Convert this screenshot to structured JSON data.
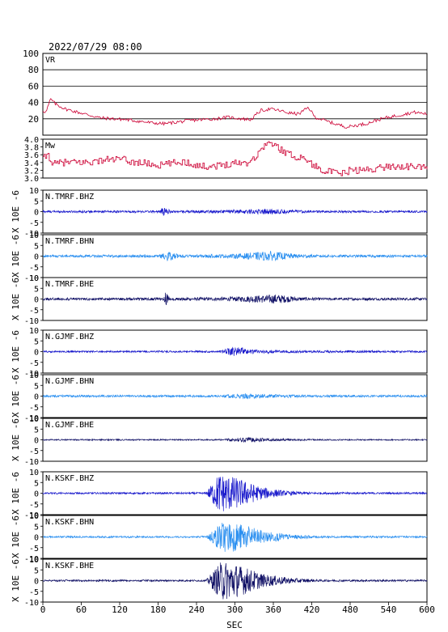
{
  "chart_data": {
    "type": "line",
    "title": "2022/07/29 08:00",
    "xlabel": "SEC",
    "xlim": [
      0,
      600
    ],
    "xticks": [
      0,
      60,
      120,
      180,
      240,
      300,
      360,
      420,
      480,
      540,
      600
    ],
    "vr": {
      "label": "VR",
      "ylim": [
        0,
        100
      ],
      "yticks": [
        20,
        40,
        60,
        80,
        100
      ],
      "color": "#cc0033",
      "points": [
        [
          0,
          30
        ],
        [
          5,
          28
        ],
        [
          12,
          44
        ],
        [
          20,
          38
        ],
        [
          35,
          32
        ],
        [
          50,
          29
        ],
        [
          70,
          25
        ],
        [
          90,
          21
        ],
        [
          110,
          20
        ],
        [
          130,
          19
        ],
        [
          150,
          17
        ],
        [
          170,
          15
        ],
        [
          190,
          14
        ],
        [
          210,
          16
        ],
        [
          230,
          18
        ],
        [
          250,
          19
        ],
        [
          270,
          20
        ],
        [
          290,
          22
        ],
        [
          310,
          20
        ],
        [
          325,
          19
        ],
        [
          340,
          30
        ],
        [
          355,
          32
        ],
        [
          370,
          30
        ],
        [
          385,
          27
        ],
        [
          400,
          26
        ],
        [
          415,
          34
        ],
        [
          425,
          22
        ],
        [
          440,
          18
        ],
        [
          460,
          13
        ],
        [
          475,
          10
        ],
        [
          490,
          12
        ],
        [
          505,
          14
        ],
        [
          520,
          18
        ],
        [
          540,
          22
        ],
        [
          560,
          25
        ],
        [
          580,
          28
        ],
        [
          600,
          26
        ]
      ]
    },
    "mw": {
      "label": "Mw",
      "ylim": [
        3.0,
        4.0
      ],
      "yticks": [
        "3.0",
        "3.2",
        "3.4",
        "3.6",
        "3.8",
        "4.0"
      ],
      "color": "#cc0033",
      "points": [
        [
          0,
          3.5
        ],
        [
          8,
          3.6
        ],
        [
          15,
          3.35
        ],
        [
          30,
          3.4
        ],
        [
          60,
          3.4
        ],
        [
          80,
          3.42
        ],
        [
          100,
          3.48
        ],
        [
          125,
          3.48
        ],
        [
          135,
          3.42
        ],
        [
          160,
          3.38
        ],
        [
          180,
          3.32
        ],
        [
          200,
          3.38
        ],
        [
          220,
          3.42
        ],
        [
          235,
          3.35
        ],
        [
          250,
          3.3
        ],
        [
          275,
          3.32
        ],
        [
          300,
          3.4
        ],
        [
          320,
          3.4
        ],
        [
          335,
          3.6
        ],
        [
          345,
          3.85
        ],
        [
          355,
          3.9
        ],
        [
          365,
          3.8
        ],
        [
          375,
          3.7
        ],
        [
          385,
          3.6
        ],
        [
          395,
          3.55
        ],
        [
          410,
          3.5
        ],
        [
          420,
          3.35
        ],
        [
          430,
          3.25
        ],
        [
          450,
          3.15
        ],
        [
          465,
          3.1
        ],
        [
          480,
          3.2
        ],
        [
          500,
          3.2
        ],
        [
          520,
          3.25
        ],
        [
          540,
          3.3
        ],
        [
          560,
          3.3
        ],
        [
          580,
          3.28
        ],
        [
          600,
          3.3
        ]
      ]
    },
    "waveform_ylabel": "X 10E -6",
    "waveform_ylim": [
      -10,
      10
    ],
    "waveform_yticks": [
      -10,
      -5,
      0,
      5,
      10
    ],
    "series": [
      {
        "name": "N.TMRF.BHZ",
        "color": "#1a1acc",
        "env": [
          [
            0,
            0.5
          ],
          [
            180,
            0.5
          ],
          [
            190,
            2.2
          ],
          [
            200,
            0.5
          ],
          [
            290,
            0.8
          ],
          [
            350,
            1.3
          ],
          [
            390,
            0.8
          ],
          [
            420,
            0.5
          ],
          [
            600,
            0.5
          ]
        ]
      },
      {
        "name": "N.TMRF.BHN",
        "color": "#2a8ff0",
        "env": [
          [
            0,
            0.6
          ],
          [
            180,
            0.6
          ],
          [
            195,
            2.2
          ],
          [
            215,
            0.6
          ],
          [
            290,
            0.9
          ],
          [
            355,
            2.3
          ],
          [
            395,
            1.0
          ],
          [
            430,
            0.6
          ],
          [
            600,
            0.6
          ]
        ]
      },
      {
        "name": "N.TMRF.BHE",
        "color": "#111166",
        "env": [
          [
            0,
            0.6
          ],
          [
            188,
            0.6
          ],
          [
            192,
            4.5
          ],
          [
            198,
            0.6
          ],
          [
            290,
            0.9
          ],
          [
            365,
            2.2
          ],
          [
            400,
            0.9
          ],
          [
            440,
            0.6
          ],
          [
            600,
            0.6
          ]
        ]
      },
      {
        "name": "N.GJMF.BHZ",
        "color": "#1a1acc",
        "env": [
          [
            0,
            0.4
          ],
          [
            275,
            0.4
          ],
          [
            300,
            2.2
          ],
          [
            330,
            1.0
          ],
          [
            380,
            0.6
          ],
          [
            600,
            0.4
          ]
        ]
      },
      {
        "name": "N.GJMF.BHN",
        "color": "#2a8ff0",
        "env": [
          [
            0,
            0.5
          ],
          [
            280,
            0.5
          ],
          [
            310,
            1.3
          ],
          [
            360,
            0.8
          ],
          [
            420,
            0.5
          ],
          [
            600,
            0.5
          ]
        ]
      },
      {
        "name": "N.GJMF.BHE",
        "color": "#111166",
        "env": [
          [
            0,
            0.3
          ],
          [
            270,
            0.3
          ],
          [
            320,
            1.2
          ],
          [
            360,
            0.6
          ],
          [
            430,
            0.3
          ],
          [
            600,
            0.3
          ]
        ]
      },
      {
        "name": "N.KSKF.BHZ",
        "color": "#1a1acc",
        "env": [
          [
            0,
            0.4
          ],
          [
            255,
            0.4
          ],
          [
            275,
            9.5
          ],
          [
            300,
            7.5
          ],
          [
            340,
            3.0
          ],
          [
            380,
            1.0
          ],
          [
            420,
            0.5
          ],
          [
            600,
            0.4
          ]
        ]
      },
      {
        "name": "N.KSKF.BHN",
        "color": "#2a8ff0",
        "env": [
          [
            0,
            0.4
          ],
          [
            255,
            0.4
          ],
          [
            280,
            7.5
          ],
          [
            305,
            6.5
          ],
          [
            345,
            2.8
          ],
          [
            390,
            1.0
          ],
          [
            430,
            0.5
          ],
          [
            600,
            0.4
          ]
        ]
      },
      {
        "name": "N.KSKF.BHE",
        "color": "#111166",
        "env": [
          [
            0,
            0.4
          ],
          [
            255,
            0.4
          ],
          [
            280,
            9.5
          ],
          [
            305,
            7.5
          ],
          [
            345,
            3.0
          ],
          [
            390,
            1.2
          ],
          [
            430,
            0.5
          ],
          [
            600,
            0.4
          ]
        ]
      }
    ]
  }
}
